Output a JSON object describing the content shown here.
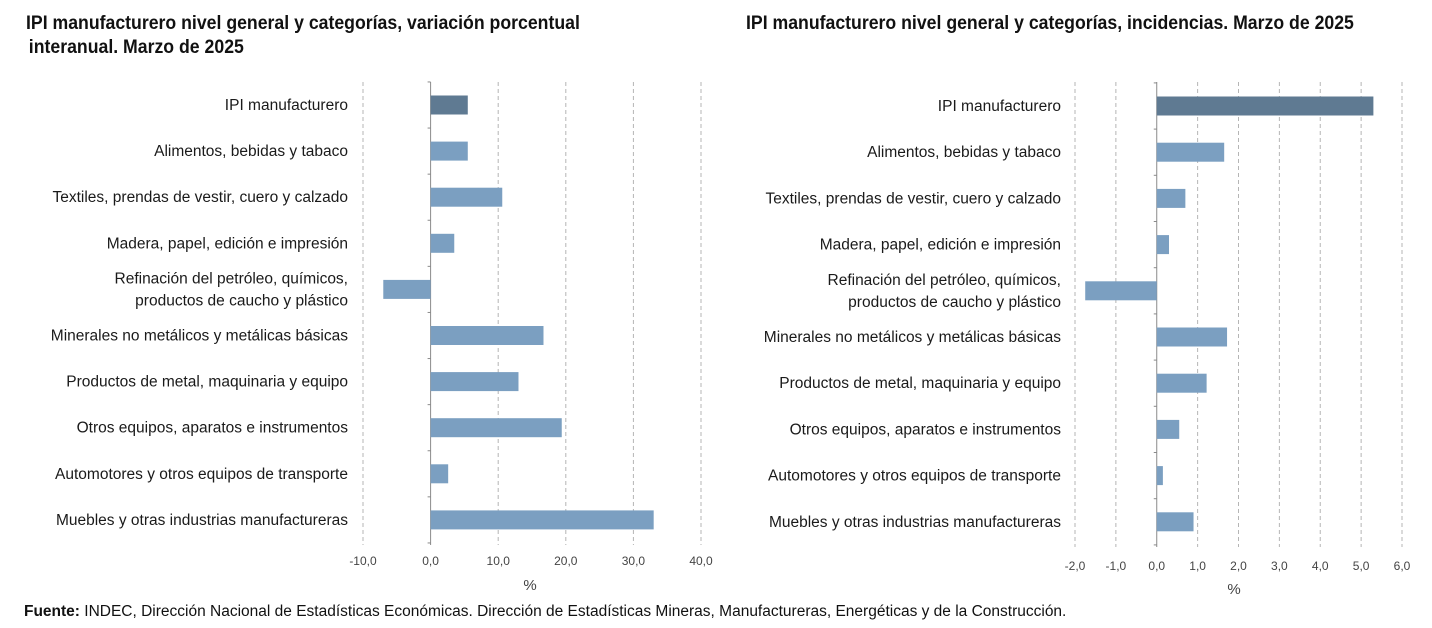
{
  "chart_data": [
    {
      "type": "bar",
      "orientation": "horizontal",
      "title_line1": "IPI manufacturero nivel general y categorías, variación porcentual",
      "title_line2": "interanual. Marzo de 2025",
      "categories": [
        "IPI manufacturero",
        "Alimentos, bebidas y tabaco",
        "Textiles, prendas de vestir, cuero y calzado",
        "Madera, papel, edición e impresión",
        [
          "Refinación del petróleo, químicos,",
          "productos de caucho y plástico"
        ],
        "Minerales no metálicos y metálicas básicas",
        "Productos de metal, maquinaria y equipo",
        "Otros equipos, aparatos e instrumentos",
        "Automotores y otros equipos de transporte",
        "Muebles y otras industrias manufactureras"
      ],
      "values": [
        5.5,
        5.5,
        10.6,
        3.5,
        -7.0,
        16.7,
        13.0,
        19.4,
        2.6,
        33.0
      ],
      "xlim": [
        -10,
        40
      ],
      "ticks": [
        -10,
        0,
        10,
        20,
        30,
        40
      ],
      "tick_labels": [
        "-10,0",
        "0,0",
        "10,0",
        "20,0",
        "30,0",
        "40,0"
      ],
      "xlabel": "%",
      "highlight_color": "#5f7a92",
      "bar_color": "#7b9fc1",
      "grid": "vertical-dashed"
    },
    {
      "type": "bar",
      "orientation": "horizontal",
      "title_line1": "IPI manufacturero nivel general y categorías, incidencias.  Marzo de 2025",
      "categories": [
        "IPI manufacturero",
        "Alimentos, bebidas y tabaco",
        "Textiles, prendas de vestir, cuero y calzado",
        "Madera, papel, edición e impresión",
        [
          "Refinación del petróleo, químicos,",
          "productos de caucho y plástico"
        ],
        "Minerales no metálicos y metálicas básicas",
        "Productos de metal, maquinaria y equipo",
        "Otros equipos, aparatos e instrumentos",
        "Automotores y otros equipos de transporte",
        "Muebles y otras industrias manufactureras"
      ],
      "values": [
        5.3,
        1.65,
        0.7,
        0.3,
        -1.75,
        1.72,
        1.22,
        0.55,
        0.15,
        0.9
      ],
      "xlim": [
        -2,
        6
      ],
      "ticks": [
        -2,
        -1,
        0,
        1,
        2,
        3,
        4,
        5,
        6
      ],
      "tick_labels": [
        "-2,0",
        "-1,0",
        "0,0",
        "1,0",
        "2,0",
        "3,0",
        "4,0",
        "5,0",
        "6,0"
      ],
      "xlabel": "%",
      "highlight_color": "#5f7a92",
      "bar_color": "#7b9fc1",
      "grid": "vertical-dashed"
    }
  ],
  "footer": {
    "label": "Fuente:",
    "text": " INDEC, Dirección Nacional de Estadísticas Económicas. Dirección de Estadísticas Mineras, Manufactureras, Energéticas y de la Construcción."
  }
}
